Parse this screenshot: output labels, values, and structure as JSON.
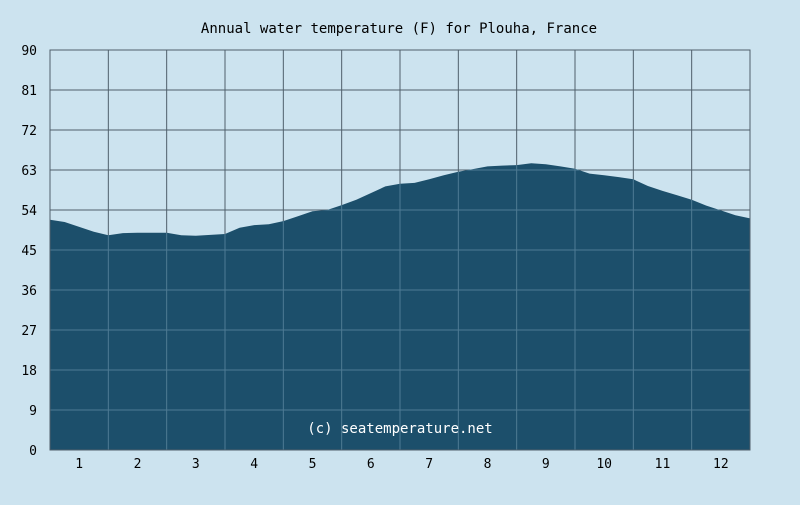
{
  "chart_data": {
    "type": "area",
    "title": "Annual water temperature (F) for Plouha, France",
    "xlabel": "",
    "ylabel": "",
    "credit": "(c) seatemperature.net",
    "ylim": [
      0,
      90
    ],
    "yticks": [
      "0",
      "9",
      "18",
      "27",
      "36",
      "45",
      "54",
      "63",
      "72",
      "81",
      "90"
    ],
    "xticks": [
      "1",
      "2",
      "3",
      "4",
      "5",
      "6",
      "7",
      "8",
      "9",
      "10",
      "11",
      "12"
    ],
    "xlim": [
      0.5,
      12.5
    ],
    "grid": true,
    "x": [
      0.5,
      0.75,
      1.0,
      1.25,
      1.5,
      1.75,
      2.0,
      2.25,
      2.5,
      2.75,
      3.0,
      3.25,
      3.5,
      3.75,
      4.0,
      4.25,
      4.5,
      4.75,
      5.0,
      5.25,
      5.5,
      5.75,
      6.0,
      6.25,
      6.5,
      6.75,
      7.0,
      7.25,
      7.5,
      7.75,
      8.0,
      8.25,
      8.5,
      8.75,
      9.0,
      9.25,
      9.5,
      9.75,
      10.0,
      10.25,
      10.5,
      10.75,
      11.0,
      11.25,
      11.5,
      11.75,
      12.0,
      12.25,
      12.5
    ],
    "values": [
      51.8,
      51.3,
      50.2,
      49.1,
      48.3,
      48.8,
      48.9,
      48.9,
      48.9,
      48.3,
      48.2,
      48.4,
      48.6,
      50.0,
      50.6,
      50.8,
      51.5,
      52.6,
      53.7,
      54.0,
      55.1,
      56.3,
      57.8,
      59.3,
      59.9,
      60.1,
      60.9,
      61.8,
      62.6,
      63.2,
      63.8,
      64.0,
      64.1,
      64.5,
      64.3,
      63.8,
      63.3,
      62.2,
      61.8,
      61.4,
      60.9,
      59.4,
      58.3,
      57.3,
      56.3,
      55.0,
      53.9,
      52.8,
      52.1
    ],
    "colors": {
      "background": "#cce3ef",
      "fill": "#1c4f6b",
      "grid_on_plot": "#4e7b94",
      "grid_above": "#4f5f6b"
    }
  }
}
